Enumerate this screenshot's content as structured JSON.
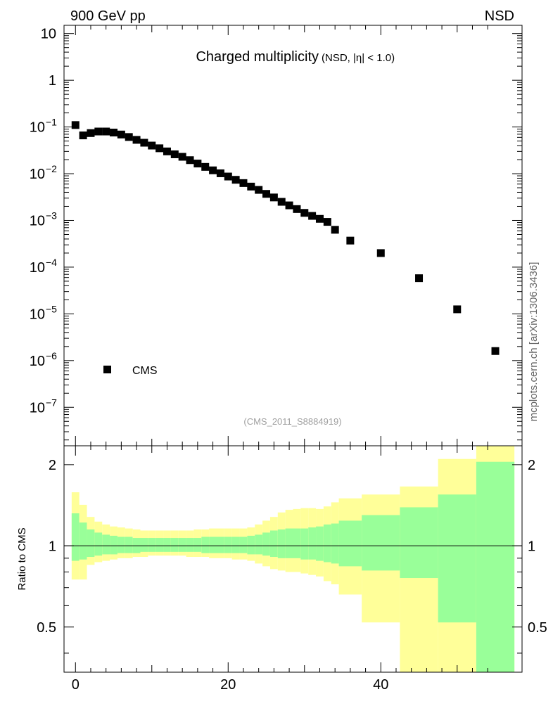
{
  "header": {
    "left": "900 GeV pp",
    "right": "NSD"
  },
  "title": {
    "main": "Charged multiplicity",
    "sub": "(NSD, |η| < 1.0)"
  },
  "analysis_label": "(CMS_2011_S8884919)",
  "side_label": "mcplots.cern.ch [arXiv:1306.3436]",
  "ratio_ylabel": "Ratio to CMS",
  "legend": {
    "entry": "CMS"
  },
  "colors": {
    "band_inner": "#99ff99",
    "band_outer": "#ffff99",
    "marker": "#000000"
  },
  "chart_data": [
    {
      "type": "scatter",
      "yscale": "log",
      "xlim": [
        -1.5,
        58.5
      ],
      "ylim": [
        1.5e-08,
        15
      ],
      "y_ticks": [
        {
          "label_main": "10",
          "label_exp": "",
          "value": 10
        },
        {
          "label_main": "1",
          "label_exp": "",
          "value": 1
        },
        {
          "label_main": "10",
          "label_exp": "−1",
          "value": 0.1
        },
        {
          "label_main": "10",
          "label_exp": "−2",
          "value": 0.01
        },
        {
          "label_main": "10",
          "label_exp": "−3",
          "value": 0.001
        },
        {
          "label_main": "10",
          "label_exp": "−4",
          "value": 0.0001
        },
        {
          "label_main": "10",
          "label_exp": "−5",
          "value": 1e-05
        },
        {
          "label_main": "10",
          "label_exp": "−6",
          "value": 1e-06
        },
        {
          "label_main": "10",
          "label_exp": "−7",
          "value": 1e-07
        }
      ],
      "series": [
        {
          "name": "CMS",
          "x": [
            0,
            1,
            2,
            3,
            4,
            5,
            6,
            7,
            8,
            9,
            10,
            11,
            12,
            13,
            14,
            15,
            16,
            17,
            18,
            19,
            20,
            21,
            22,
            23,
            24,
            25,
            26,
            27,
            28,
            29,
            30,
            31,
            32,
            33,
            34,
            36,
            40,
            45,
            50,
            55
          ],
          "y": [
            0.11,
            0.066,
            0.074,
            0.08,
            0.08,
            0.076,
            0.069,
            0.061,
            0.053,
            0.046,
            0.04,
            0.035,
            0.03,
            0.026,
            0.023,
            0.0195,
            0.0165,
            0.014,
            0.0118,
            0.0102,
            0.0087,
            0.0074,
            0.0063,
            0.0053,
            0.0045,
            0.0037,
            0.0031,
            0.0025,
            0.0021,
            0.00175,
            0.00145,
            0.00125,
            0.00108,
            0.00093,
            0.00063,
            0.00037,
            0.0002,
            5.8e-05,
            1.25e-05,
            1.6e-06
          ]
        }
      ]
    },
    {
      "type": "area",
      "yscale": "log",
      "xlim": [
        -1.5,
        58.5
      ],
      "ylim": [
        0.34,
        2.35
      ],
      "y_ticks": [
        {
          "label": "2",
          "value": 2
        },
        {
          "label": "1",
          "value": 1
        },
        {
          "label": "0.5",
          "value": 0.5
        }
      ],
      "x_ticks": [
        {
          "label": "0",
          "value": 0
        },
        {
          "label": "20",
          "value": 20
        },
        {
          "label": "40",
          "value": 40
        }
      ],
      "reference_line": 1,
      "bins": [
        {
          "x0": -0.5,
          "x1": 0.5,
          "in_lo": 0.88,
          "in_hi": 1.32,
          "out_lo": 0.75,
          "out_hi": 1.58
        },
        {
          "x0": 0.5,
          "x1": 1.5,
          "in_lo": 0.89,
          "in_hi": 1.22,
          "out_lo": 0.75,
          "out_hi": 1.42
        },
        {
          "x0": 1.5,
          "x1": 2.5,
          "in_lo": 0.91,
          "in_hi": 1.15,
          "out_lo": 0.85,
          "out_hi": 1.28
        },
        {
          "x0": 2.5,
          "x1": 3.5,
          "in_lo": 0.92,
          "in_hi": 1.12,
          "out_lo": 0.87,
          "out_hi": 1.23
        },
        {
          "x0": 3.5,
          "x1": 4.5,
          "in_lo": 0.93,
          "in_hi": 1.1,
          "out_lo": 0.88,
          "out_hi": 1.2
        },
        {
          "x0": 4.5,
          "x1": 5.5,
          "in_lo": 0.93,
          "in_hi": 1.09,
          "out_lo": 0.89,
          "out_hi": 1.18
        },
        {
          "x0": 5.5,
          "x1": 6.5,
          "in_lo": 0.94,
          "in_hi": 1.08,
          "out_lo": 0.9,
          "out_hi": 1.17
        },
        {
          "x0": 6.5,
          "x1": 7.5,
          "in_lo": 0.94,
          "in_hi": 1.08,
          "out_lo": 0.9,
          "out_hi": 1.16
        },
        {
          "x0": 7.5,
          "x1": 8.5,
          "in_lo": 0.94,
          "in_hi": 1.07,
          "out_lo": 0.91,
          "out_hi": 1.15
        },
        {
          "x0": 8.5,
          "x1": 9.5,
          "in_lo": 0.95,
          "in_hi": 1.07,
          "out_lo": 0.91,
          "out_hi": 1.14
        },
        {
          "x0": 9.5,
          "x1": 10.5,
          "in_lo": 0.95,
          "in_hi": 1.07,
          "out_lo": 0.92,
          "out_hi": 1.14
        },
        {
          "x0": 10.5,
          "x1": 11.5,
          "in_lo": 0.95,
          "in_hi": 1.07,
          "out_lo": 0.92,
          "out_hi": 1.14
        },
        {
          "x0": 11.5,
          "x1": 12.5,
          "in_lo": 0.95,
          "in_hi": 1.07,
          "out_lo": 0.92,
          "out_hi": 1.14
        },
        {
          "x0": 12.5,
          "x1": 13.5,
          "in_lo": 0.95,
          "in_hi": 1.07,
          "out_lo": 0.92,
          "out_hi": 1.14
        },
        {
          "x0": 13.5,
          "x1": 14.5,
          "in_lo": 0.95,
          "in_hi": 1.07,
          "out_lo": 0.92,
          "out_hi": 1.14
        },
        {
          "x0": 14.5,
          "x1": 15.5,
          "in_lo": 0.95,
          "in_hi": 1.07,
          "out_lo": 0.91,
          "out_hi": 1.14
        },
        {
          "x0": 15.5,
          "x1": 16.5,
          "in_lo": 0.95,
          "in_hi": 1.07,
          "out_lo": 0.91,
          "out_hi": 1.15
        },
        {
          "x0": 16.5,
          "x1": 17.5,
          "in_lo": 0.94,
          "in_hi": 1.08,
          "out_lo": 0.91,
          "out_hi": 1.15
        },
        {
          "x0": 17.5,
          "x1": 18.5,
          "in_lo": 0.94,
          "in_hi": 1.08,
          "out_lo": 0.9,
          "out_hi": 1.16
        },
        {
          "x0": 18.5,
          "x1": 19.5,
          "in_lo": 0.94,
          "in_hi": 1.08,
          "out_lo": 0.9,
          "out_hi": 1.16
        },
        {
          "x0": 19.5,
          "x1": 20.5,
          "in_lo": 0.94,
          "in_hi": 1.08,
          "out_lo": 0.9,
          "out_hi": 1.16
        },
        {
          "x0": 20.5,
          "x1": 21.5,
          "in_lo": 0.94,
          "in_hi": 1.08,
          "out_lo": 0.89,
          "out_hi": 1.16
        },
        {
          "x0": 21.5,
          "x1": 22.5,
          "in_lo": 0.94,
          "in_hi": 1.08,
          "out_lo": 0.89,
          "out_hi": 1.16
        },
        {
          "x0": 22.5,
          "x1": 23.5,
          "in_lo": 0.93,
          "in_hi": 1.09,
          "out_lo": 0.88,
          "out_hi": 1.17
        },
        {
          "x0": 23.5,
          "x1": 24.5,
          "in_lo": 0.93,
          "in_hi": 1.1,
          "out_lo": 0.86,
          "out_hi": 1.2
        },
        {
          "x0": 24.5,
          "x1": 25.5,
          "in_lo": 0.92,
          "in_hi": 1.12,
          "out_lo": 0.84,
          "out_hi": 1.24
        },
        {
          "x0": 25.5,
          "x1": 26.5,
          "in_lo": 0.91,
          "in_hi": 1.14,
          "out_lo": 0.82,
          "out_hi": 1.28
        },
        {
          "x0": 26.5,
          "x1": 27.5,
          "in_lo": 0.9,
          "in_hi": 1.15,
          "out_lo": 0.81,
          "out_hi": 1.33
        },
        {
          "x0": 27.5,
          "x1": 28.5,
          "in_lo": 0.9,
          "in_hi": 1.16,
          "out_lo": 0.8,
          "out_hi": 1.36
        },
        {
          "x0": 28.5,
          "x1": 29.5,
          "in_lo": 0.9,
          "in_hi": 1.16,
          "out_lo": 0.8,
          "out_hi": 1.37
        },
        {
          "x0": 29.5,
          "x1": 30.5,
          "in_lo": 0.89,
          "in_hi": 1.16,
          "out_lo": 0.79,
          "out_hi": 1.38
        },
        {
          "x0": 30.5,
          "x1": 31.5,
          "in_lo": 0.89,
          "in_hi": 1.17,
          "out_lo": 0.78,
          "out_hi": 1.38
        },
        {
          "x0": 31.5,
          "x1": 32.5,
          "in_lo": 0.88,
          "in_hi": 1.18,
          "out_lo": 0.77,
          "out_hi": 1.37
        },
        {
          "x0": 32.5,
          "x1": 33.5,
          "in_lo": 0.87,
          "in_hi": 1.2,
          "out_lo": 0.74,
          "out_hi": 1.4
        },
        {
          "x0": 33.5,
          "x1": 34.5,
          "in_lo": 0.86,
          "in_hi": 1.21,
          "out_lo": 0.72,
          "out_hi": 1.45
        },
        {
          "x0": 34.5,
          "x1": 37.5,
          "in_lo": 0.84,
          "in_hi": 1.24,
          "out_lo": 0.66,
          "out_hi": 1.5
        },
        {
          "x0": 37.5,
          "x1": 42.5,
          "in_lo": 0.81,
          "in_hi": 1.3,
          "out_lo": 0.52,
          "out_hi": 1.55
        },
        {
          "x0": 42.5,
          "x1": 47.5,
          "in_lo": 0.76,
          "in_hi": 1.39,
          "out_lo": 0.34,
          "out_hi": 1.66
        },
        {
          "x0": 47.5,
          "x1": 52.5,
          "in_lo": 0.52,
          "in_hi": 1.55,
          "out_lo": 0.34,
          "out_hi": 2.1
        },
        {
          "x0": 52.5,
          "x1": 57.5,
          "in_lo": 0.34,
          "in_hi": 2.05,
          "out_lo": 0.34,
          "out_hi": 2.35
        }
      ]
    }
  ]
}
